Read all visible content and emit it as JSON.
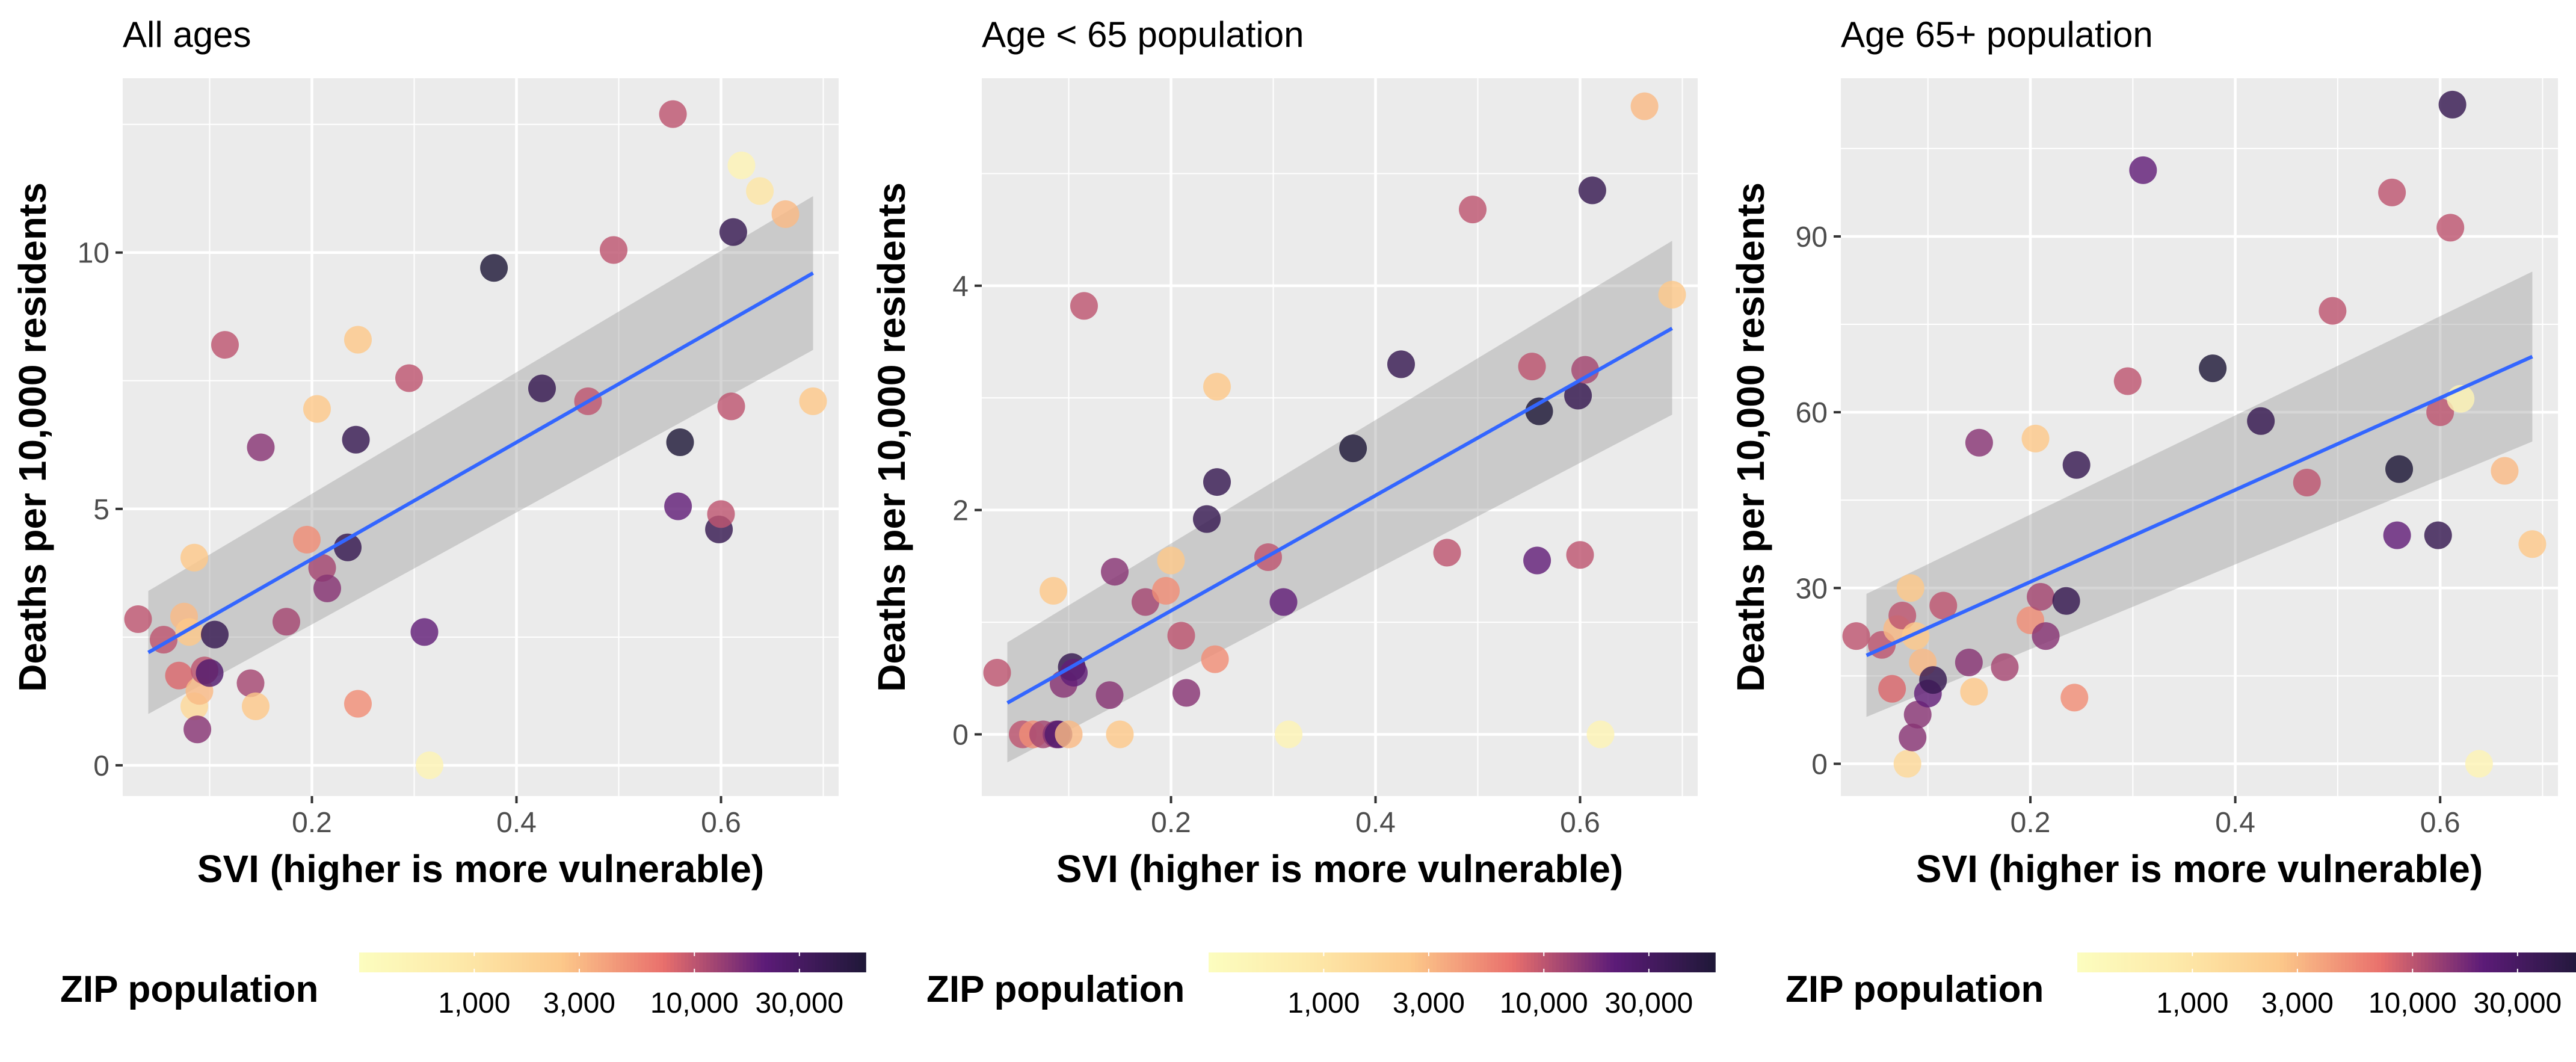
{
  "chart_data": [
    {
      "type": "scatter",
      "title": "All ages",
      "xlabel": "SVI (higher is more vulnerable)",
      "ylabel": "Deaths per 10,000 residents",
      "xlim": [
        0.015,
        0.715
      ],
      "ylim": [
        -0.6,
        13.4
      ],
      "xticks": [
        0.2,
        0.4,
        0.6
      ],
      "xtick_labels": [
        "0.2",
        "0.4",
        "0.6"
      ],
      "yticks": [
        0,
        5,
        10
      ],
      "ytick_labels": [
        "0",
        "5",
        "10"
      ],
      "grid": true,
      "fit": {
        "type": "linear",
        "x": [
          0.04,
          0.69
        ],
        "y": [
          2.2,
          9.6
        ],
        "ci_lower": [
          1.0,
          8.1
        ],
        "ci_upper": [
          3.4,
          11.1
        ],
        "color": "#3366ff"
      },
      "points": [
        {
          "x": 0.03,
          "y": 2.85,
          "pop": 10000
        },
        {
          "x": 0.055,
          "y": 2.45,
          "pop": 10000
        },
        {
          "x": 0.07,
          "y": 1.75,
          "pop": 8000
        },
        {
          "x": 0.075,
          "y": 2.9,
          "pop": 3000
        },
        {
          "x": 0.08,
          "y": 2.6,
          "pop": 2500
        },
        {
          "x": 0.085,
          "y": 1.15,
          "pop": 1500
        },
        {
          "x": 0.085,
          "y": 4.05,
          "pop": 2500
        },
        {
          "x": 0.088,
          "y": 0.7,
          "pop": 15000
        },
        {
          "x": 0.09,
          "y": 1.45,
          "pop": 3000
        },
        {
          "x": 0.095,
          "y": 1.85,
          "pop": 10000
        },
        {
          "x": 0.1,
          "y": 1.8,
          "pop": 25000
        },
        {
          "x": 0.105,
          "y": 2.55,
          "pop": 40000
        },
        {
          "x": 0.115,
          "y": 8.2,
          "pop": 10000
        },
        {
          "x": 0.14,
          "y": 1.6,
          "pop": 12000
        },
        {
          "x": 0.145,
          "y": 1.15,
          "pop": 2500
        },
        {
          "x": 0.15,
          "y": 6.2,
          "pop": 15000
        },
        {
          "x": 0.175,
          "y": 2.8,
          "pop": 12000
        },
        {
          "x": 0.195,
          "y": 4.4,
          "pop": 5000
        },
        {
          "x": 0.205,
          "y": 6.95,
          "pop": 2500
        },
        {
          "x": 0.21,
          "y": 3.85,
          "pop": 12000
        },
        {
          "x": 0.215,
          "y": 3.45,
          "pop": 15000
        },
        {
          "x": 0.235,
          "y": 4.25,
          "pop": 40000
        },
        {
          "x": 0.243,
          "y": 6.35,
          "pop": 40000
        },
        {
          "x": 0.245,
          "y": 1.2,
          "pop": 5000
        },
        {
          "x": 0.245,
          "y": 8.3,
          "pop": 2500
        },
        {
          "x": 0.295,
          "y": 7.55,
          "pop": 10000
        },
        {
          "x": 0.31,
          "y": 2.6,
          "pop": 20000
        },
        {
          "x": 0.315,
          "y": 0.0,
          "pop": 500
        },
        {
          "x": 0.378,
          "y": 9.7,
          "pop": 120000
        },
        {
          "x": 0.425,
          "y": 7.35,
          "pop": 40000
        },
        {
          "x": 0.47,
          "y": 7.1,
          "pop": 10000
        },
        {
          "x": 0.495,
          "y": 10.05,
          "pop": 10000
        },
        {
          "x": 0.553,
          "y": 12.7,
          "pop": 10000
        },
        {
          "x": 0.558,
          "y": 5.05,
          "pop": 20000
        },
        {
          "x": 0.56,
          "y": 6.3,
          "pop": 120000
        },
        {
          "x": 0.598,
          "y": 4.6,
          "pop": 40000
        },
        {
          "x": 0.6,
          "y": 4.9,
          "pop": 10000
        },
        {
          "x": 0.61,
          "y": 7.0,
          "pop": 10000
        },
        {
          "x": 0.612,
          "y": 10.4,
          "pop": 40000
        },
        {
          "x": 0.62,
          "y": 11.7,
          "pop": 500
        },
        {
          "x": 0.638,
          "y": 11.2,
          "pop": 1000
        },
        {
          "x": 0.663,
          "y": 10.75,
          "pop": 3000
        },
        {
          "x": 0.69,
          "y": 7.1,
          "pop": 2500
        }
      ]
    },
    {
      "type": "scatter",
      "title": "Age < 65 population",
      "xlabel": "SVI (higher is more vulnerable)",
      "ylabel": "Deaths per 10,000 residents",
      "xlim": [
        0.015,
        0.715
      ],
      "ylim": [
        -0.55,
        5.85
      ],
      "xticks": [
        0.2,
        0.4,
        0.6
      ],
      "xtick_labels": [
        "0.2",
        "0.4",
        "0.6"
      ],
      "yticks": [
        0,
        2,
        4
      ],
      "ytick_labels": [
        "0",
        "2",
        "4"
      ],
      "grid": true,
      "fit": {
        "type": "linear",
        "x": [
          0.04,
          0.69
        ],
        "y": [
          0.28,
          3.62
        ],
        "ci_lower": [
          -0.25,
          2.85
        ],
        "ci_upper": [
          0.82,
          4.4
        ],
        "color": "#3366ff"
      },
      "points": [
        {
          "x": 0.03,
          "y": 0.55,
          "pop": 10000
        },
        {
          "x": 0.055,
          "y": 0.0,
          "pop": 10000
        },
        {
          "x": 0.065,
          "y": 0.0,
          "pop": 5000
        },
        {
          "x": 0.075,
          "y": 0.0,
          "pop": 12000
        },
        {
          "x": 0.085,
          "y": 1.28,
          "pop": 2500
        },
        {
          "x": 0.088,
          "y": 0.0,
          "pop": 15000
        },
        {
          "x": 0.09,
          "y": 0.0,
          "pop": 25000
        },
        {
          "x": 0.095,
          "y": 0.45,
          "pop": 15000
        },
        {
          "x": 0.1,
          "y": 0.0,
          "pop": 3000
        },
        {
          "x": 0.103,
          "y": 0.6,
          "pop": 40000
        },
        {
          "x": 0.105,
          "y": 0.55,
          "pop": 20000
        },
        {
          "x": 0.115,
          "y": 3.82,
          "pop": 10000
        },
        {
          "x": 0.14,
          "y": 0.35,
          "pop": 15000
        },
        {
          "x": 0.145,
          "y": 1.45,
          "pop": 15000
        },
        {
          "x": 0.15,
          "y": 0.0,
          "pop": 2500
        },
        {
          "x": 0.175,
          "y": 1.18,
          "pop": 12000
        },
        {
          "x": 0.195,
          "y": 1.28,
          "pop": 5000
        },
        {
          "x": 0.2,
          "y": 1.55,
          "pop": 2500
        },
        {
          "x": 0.21,
          "y": 0.88,
          "pop": 10000
        },
        {
          "x": 0.215,
          "y": 0.37,
          "pop": 15000
        },
        {
          "x": 0.235,
          "y": 1.92,
          "pop": 40000
        },
        {
          "x": 0.243,
          "y": 0.67,
          "pop": 5000
        },
        {
          "x": 0.245,
          "y": 2.25,
          "pop": 40000
        },
        {
          "x": 0.245,
          "y": 3.1,
          "pop": 2500
        },
        {
          "x": 0.295,
          "y": 1.58,
          "pop": 10000
        },
        {
          "x": 0.31,
          "y": 1.18,
          "pop": 20000
        },
        {
          "x": 0.315,
          "y": 0.0,
          "pop": 500
        },
        {
          "x": 0.378,
          "y": 2.55,
          "pop": 120000
        },
        {
          "x": 0.425,
          "y": 3.3,
          "pop": 40000
        },
        {
          "x": 0.47,
          "y": 1.62,
          "pop": 10000
        },
        {
          "x": 0.495,
          "y": 4.68,
          "pop": 10000
        },
        {
          "x": 0.553,
          "y": 3.28,
          "pop": 10000
        },
        {
          "x": 0.558,
          "y": 1.55,
          "pop": 20000
        },
        {
          "x": 0.56,
          "y": 2.88,
          "pop": 120000
        },
        {
          "x": 0.598,
          "y": 3.02,
          "pop": 40000
        },
        {
          "x": 0.6,
          "y": 1.6,
          "pop": 10000
        },
        {
          "x": 0.605,
          "y": 3.25,
          "pop": 12000
        },
        {
          "x": 0.612,
          "y": 4.85,
          "pop": 40000
        },
        {
          "x": 0.62,
          "y": 0.0,
          "pop": 500
        },
        {
          "x": 0.663,
          "y": 5.6,
          "pop": 3000
        },
        {
          "x": 0.69,
          "y": 3.92,
          "pop": 2500
        }
      ]
    },
    {
      "type": "scatter",
      "title": "Age 65+ population",
      "xlabel": "SVI (higher is more vulnerable)",
      "ylabel": "Deaths per 10,000 residents",
      "xlim": [
        0.015,
        0.715
      ],
      "ylim": [
        -5.5,
        117
      ],
      "xticks": [
        0.2,
        0.4,
        0.6
      ],
      "xtick_labels": [
        "0.2",
        "0.4",
        "0.6"
      ],
      "yticks": [
        0,
        30,
        60,
        90
      ],
      "ytick_labels": [
        "0",
        "30",
        "60",
        "90"
      ],
      "grid": true,
      "fit": {
        "type": "linear",
        "x": [
          0.04,
          0.69
        ],
        "y": [
          18.5,
          69.5
        ],
        "ci_lower": [
          8.0,
          55.0
        ],
        "ci_upper": [
          29.0,
          84.0
        ],
        "color": "#3366ff"
      },
      "points": [
        {
          "x": 0.03,
          "y": 21.8,
          "pop": 10000
        },
        {
          "x": 0.055,
          "y": 20.3,
          "pop": 10000
        },
        {
          "x": 0.065,
          "y": 12.8,
          "pop": 8000
        },
        {
          "x": 0.07,
          "y": 23.0,
          "pop": 3000
        },
        {
          "x": 0.075,
          "y": 25.3,
          "pop": 10000
        },
        {
          "x": 0.08,
          "y": 0.0,
          "pop": 1500
        },
        {
          "x": 0.083,
          "y": 30.0,
          "pop": 2500
        },
        {
          "x": 0.085,
          "y": 4.5,
          "pop": 15000
        },
        {
          "x": 0.088,
          "y": 21.8,
          "pop": 2500
        },
        {
          "x": 0.09,
          "y": 8.4,
          "pop": 15000
        },
        {
          "x": 0.095,
          "y": 17.3,
          "pop": 3000
        },
        {
          "x": 0.1,
          "y": 12.0,
          "pop": 20000
        },
        {
          "x": 0.105,
          "y": 14.3,
          "pop": 40000
        },
        {
          "x": 0.115,
          "y": 27.0,
          "pop": 10000
        },
        {
          "x": 0.14,
          "y": 17.3,
          "pop": 15000
        },
        {
          "x": 0.145,
          "y": 12.3,
          "pop": 2500
        },
        {
          "x": 0.15,
          "y": 54.8,
          "pop": 15000
        },
        {
          "x": 0.175,
          "y": 16.5,
          "pop": 12000
        },
        {
          "x": 0.2,
          "y": 24.5,
          "pop": 5000
        },
        {
          "x": 0.205,
          "y": 55.5,
          "pop": 2500
        },
        {
          "x": 0.21,
          "y": 28.5,
          "pop": 12000
        },
        {
          "x": 0.215,
          "y": 21.8,
          "pop": 15000
        },
        {
          "x": 0.235,
          "y": 27.8,
          "pop": 40000
        },
        {
          "x": 0.243,
          "y": 11.3,
          "pop": 5000
        },
        {
          "x": 0.245,
          "y": 51.0,
          "pop": 40000
        },
        {
          "x": 0.295,
          "y": 65.3,
          "pop": 10000
        },
        {
          "x": 0.31,
          "y": 101.3,
          "pop": 20000
        },
        {
          "x": 0.378,
          "y": 67.5,
          "pop": 120000
        },
        {
          "x": 0.425,
          "y": 58.5,
          "pop": 40000
        },
        {
          "x": 0.47,
          "y": 48.0,
          "pop": 10000
        },
        {
          "x": 0.495,
          "y": 77.3,
          "pop": 10000
        },
        {
          "x": 0.553,
          "y": 97.5,
          "pop": 10000
        },
        {
          "x": 0.558,
          "y": 39.0,
          "pop": 20000
        },
        {
          "x": 0.56,
          "y": 50.3,
          "pop": 120000
        },
        {
          "x": 0.598,
          "y": 39.0,
          "pop": 40000
        },
        {
          "x": 0.6,
          "y": 60.0,
          "pop": 10000
        },
        {
          "x": 0.61,
          "y": 91.5,
          "pop": 10000
        },
        {
          "x": 0.612,
          "y": 112.5,
          "pop": 40000
        },
        {
          "x": 0.62,
          "y": 62.3,
          "pop": 500
        },
        {
          "x": 0.638,
          "y": 0.0,
          "pop": 500
        },
        {
          "x": 0.663,
          "y": 50.0,
          "pop": 3000
        },
        {
          "x": 0.69,
          "y": 37.5,
          "pop": 2500
        }
      ]
    }
  ],
  "legend": {
    "title": "ZIP population",
    "scale": "log10",
    "range": [
      300,
      60000
    ],
    "breaks": [
      1000,
      3000,
      10000,
      30000
    ],
    "break_labels": [
      "1,000",
      "3,000",
      "10,000",
      "30,000"
    ],
    "colors": [
      "#fcfdbf",
      "#fde9a9",
      "#fcc88a",
      "#e9706c",
      "#5c1b78",
      "#1f1838"
    ]
  }
}
